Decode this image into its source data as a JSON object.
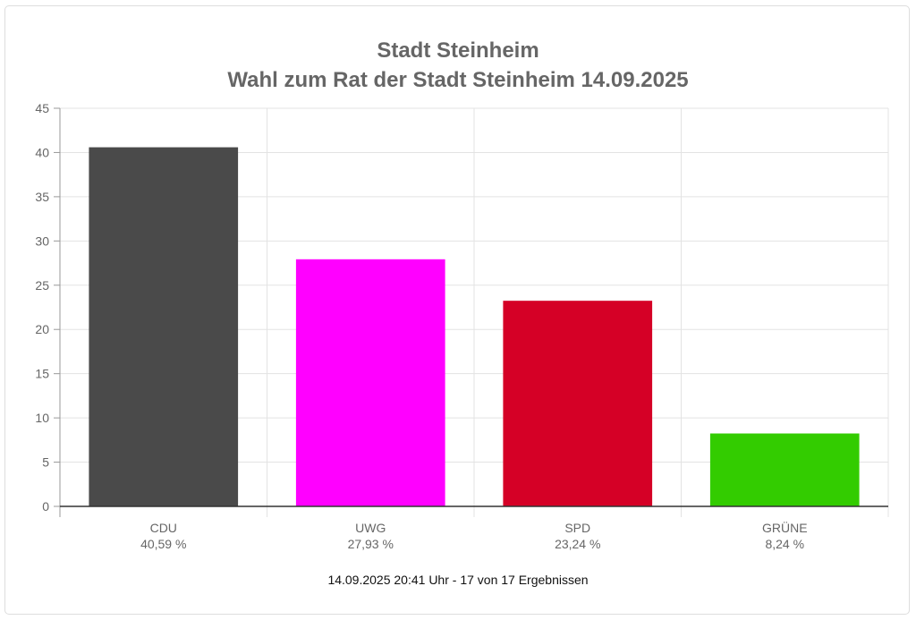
{
  "chart_data": {
    "type": "bar",
    "title": "Stadt Steinheim",
    "subtitle": "Wahl zum Rat der Stadt Steinheim 14.09.2025",
    "categories": [
      "CDU",
      "UWG",
      "SPD",
      "GRÜNE"
    ],
    "value_labels": [
      "40,59 %",
      "27,93 %",
      "23,24 %",
      "8,24 %"
    ],
    "values": [
      40.59,
      27.93,
      23.24,
      8.24
    ],
    "colors": [
      "#4a4a4a",
      "#ff00ff",
      "#d50026",
      "#33cc00"
    ],
    "ylim": [
      0,
      45
    ],
    "yticks": [
      0,
      5,
      10,
      15,
      20,
      25,
      30,
      35,
      40,
      45
    ],
    "grid": true,
    "xlabel": "",
    "ylabel": ""
  },
  "footer": "14.09.2025 20:41 Uhr - 17 von 17 Ergebnissen"
}
